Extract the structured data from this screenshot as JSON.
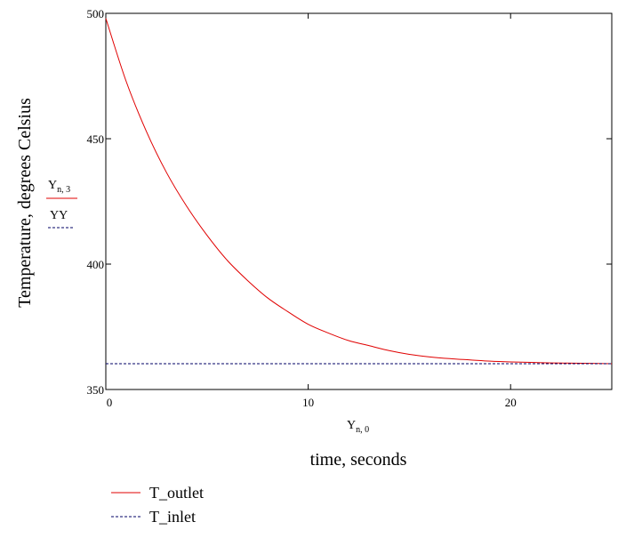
{
  "chart_data": {
    "type": "line",
    "xlabel": "time, seconds",
    "ylabel": "Temperature, degrees Celsius",
    "x_variable": {
      "main": "Y",
      "sub": "n, 0"
    },
    "y_variables": [
      {
        "main": "Y",
        "sub": "n, 3",
        "style": "solid",
        "color": "#e00000"
      },
      {
        "main": "YY",
        "sub": "",
        "style": "dashed",
        "color": "#000066"
      }
    ],
    "xlim": [
      0,
      25
    ],
    "ylim": [
      350,
      500
    ],
    "xticks": [
      0,
      10,
      20
    ],
    "yticks": [
      350,
      400,
      450,
      500
    ],
    "series": [
      {
        "name": "T_outlet",
        "color": "#e00000",
        "style": "solid",
        "x": [
          0,
          1,
          2,
          3,
          4,
          5,
          6,
          7,
          8,
          9,
          10,
          11,
          12,
          13,
          14,
          15,
          16,
          17,
          18,
          19,
          20,
          21,
          22,
          23,
          24,
          25
        ],
        "y": [
          498,
          473,
          453,
          436.5,
          423,
          411.5,
          401.5,
          393.5,
          386.5,
          381,
          376,
          372.5,
          369.5,
          367.5,
          365.5,
          364,
          363,
          362.3,
          361.8,
          361.3,
          361,
          360.8,
          360.6,
          360.5,
          360.4,
          360.3
        ]
      },
      {
        "name": "T_inlet",
        "color": "#000066",
        "style": "dashed",
        "x": [
          0,
          25
        ],
        "y": [
          360.3,
          360.3
        ]
      }
    ],
    "legend": {
      "position": "bottom-left",
      "entries": [
        {
          "label": "T_outlet",
          "style": "solid",
          "color": "#e00000"
        },
        {
          "label": "T_inlet",
          "style": "dashed",
          "color": "#000066"
        }
      ]
    }
  }
}
